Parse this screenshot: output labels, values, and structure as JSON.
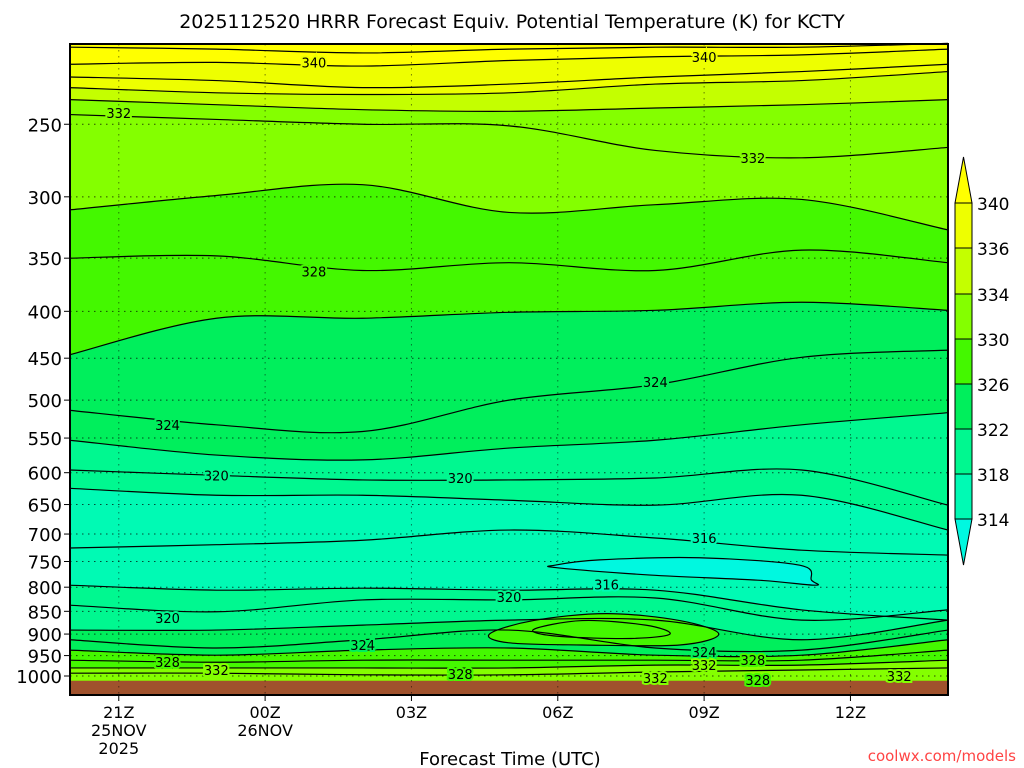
{
  "chart_data": {
    "type": "contour",
    "title": "2025112520 HRRR Forecast Equiv. Potential Temperature (K) for KCTY",
    "xlabel": "Forecast Time (UTC)",
    "ylabel": "",
    "watermark": "coolwx.com/models",
    "x_units": "hours since 2025-11-25 20Z",
    "xlim": [
      0,
      18
    ],
    "ylim": [
      1050,
      204
    ],
    "y_scale": "log",
    "grid": true,
    "x_ticks": [
      {
        "hour": 1,
        "lines": [
          "21Z",
          "25NOV",
          "2025"
        ]
      },
      {
        "hour": 4,
        "lines": [
          "00Z",
          "26NOV"
        ]
      },
      {
        "hour": 7,
        "lines": [
          "03Z"
        ]
      },
      {
        "hour": 10,
        "lines": [
          "06Z"
        ]
      },
      {
        "hour": 13,
        "lines": [
          "09Z"
        ]
      },
      {
        "hour": 16,
        "lines": [
          "12Z"
        ]
      }
    ],
    "y_ticks": [
      "250",
      "300",
      "350",
      "400",
      "450",
      "500",
      "550",
      "600",
      "650",
      "700",
      "750",
      "800",
      "850",
      "900",
      "950",
      "1000"
    ],
    "colorbar": {
      "labels": [
        "340",
        "336",
        "334",
        "330",
        "326",
        "322",
        "318",
        "314"
      ],
      "colors": [
        "#ffff00",
        "#eeff00",
        "#c4ff00",
        "#84ff00",
        "#44f800",
        "#00ef5c",
        "#00f890",
        "#00fab4",
        "#00f8e0"
      ]
    },
    "contour_hours": [
      0,
      3,
      6,
      9,
      12,
      15,
      18
    ],
    "upper_contours": [
      {
        "level": 342,
        "p": [
          206,
          207,
          209,
          207,
          206,
          206,
          204
        ]
      },
      {
        "level": 340,
        "p": [
          215,
          214,
          216,
          213,
          211,
          210,
          207
        ]
      },
      {
        "level": 338,
        "p": [
          222,
          224,
          228,
          226,
          222,
          219,
          215
        ]
      },
      {
        "level": 336,
        "p": [
          228,
          231,
          232,
          231,
          226,
          224,
          219
        ]
      },
      {
        "level": 334,
        "p": [
          235,
          238,
          241,
          242,
          240,
          238,
          235
        ]
      },
      {
        "level": 332,
        "p": [
          244,
          247,
          250,
          251,
          267,
          272,
          265
        ]
      },
      {
        "level": 330,
        "p": [
          310,
          299,
          291,
          312,
          306,
          302,
          326
        ]
      },
      {
        "level": 328,
        "p": [
          350,
          348,
          361,
          354,
          361,
          343,
          354
        ]
      },
      {
        "level": 326,
        "p": [
          446,
          407,
          407,
          401,
          399,
          391,
          399
        ]
      },
      {
        "level": 324,
        "p": [
          513,
          532,
          541,
          500,
          481,
          449,
          441
        ]
      },
      {
        "level": 322,
        "p": [
          553,
          574,
          581,
          564,
          553,
          532,
          516
        ]
      },
      {
        "level": 320,
        "p": [
          596,
          604,
          611,
          611,
          608,
          596,
          651
        ]
      },
      {
        "level": 318,
        "p": [
          624,
          635,
          635,
          643,
          651,
          635,
          693
        ]
      },
      {
        "level": 316,
        "p": [
          725,
          719,
          711,
          693,
          707,
          729,
          738
        ]
      }
    ],
    "lower_contours": [
      {
        "level": 318,
        "p": [
          796,
          806,
          802,
          806,
          806,
          847,
          869
        ]
      },
      {
        "level": 320,
        "p": [
          837,
          851,
          826,
          826,
          822,
          869,
          847
        ]
      },
      {
        "level": 322,
        "p": [
          891,
          891,
          880,
          869,
          869,
          913,
          869
        ]
      },
      {
        "level": 324,
        "p": [
          913,
          932,
          913,
          891,
          932,
          937,
          891
        ]
      },
      {
        "level": 326,
        "p": [
          937,
          949,
          937,
          932,
          949,
          949,
          913
        ]
      },
      {
        "level": 328,
        "p": [
          961,
          966,
          961,
          961,
          961,
          961,
          937
        ]
      },
      {
        "level": 330,
        "p": [
          980,
          980,
          980,
          980,
          973,
          973,
          961
        ]
      },
      {
        "level": 332,
        "p": [
          993,
          993,
          997,
          997,
          990,
          985,
          980
        ]
      }
    ],
    "closed_contours": [
      {
        "level": 314,
        "fill_theta": 313,
        "points": [
          [
            9.94,
            757
          ],
          [
            10.86,
            747
          ],
          [
            12.9,
            743
          ],
          [
            14.96,
            757
          ],
          [
            15.2,
            786
          ],
          [
            15.27,
            796
          ],
          [
            14.1,
            786
          ],
          [
            11.9,
            776
          ],
          [
            10.0,
            762
          ]
        ]
      },
      {
        "level": 326,
        "fill_theta": 327,
        "points": [
          [
            8.6,
            900
          ],
          [
            9.5,
            870
          ],
          [
            11,
            855
          ],
          [
            12.5,
            870
          ],
          [
            13.3,
            900
          ],
          [
            12.5,
            925
          ],
          [
            10.5,
            925
          ],
          [
            9,
            920
          ]
        ]
      },
      {
        "level": 328,
        "fill_theta": 329,
        "points": [
          [
            9.5,
            890
          ],
          [
            10.5,
            870
          ],
          [
            11.8,
            880
          ],
          [
            12.3,
            900
          ],
          [
            11.5,
            910
          ],
          [
            10,
            905
          ]
        ]
      }
    ],
    "contour_labels": [
      {
        "text": "340",
        "hour": 5.0,
        "p": 214
      },
      {
        "text": "340",
        "hour": 13.0,
        "p": 211
      },
      {
        "text": "332",
        "hour": 1.0,
        "p": 243
      },
      {
        "text": "332",
        "hour": 14.0,
        "p": 272
      },
      {
        "text": "328",
        "hour": 5.0,
        "p": 362
      },
      {
        "text": "324",
        "hour": 2.0,
        "p": 532
      },
      {
        "text": "324",
        "hour": 12.0,
        "p": 478
      },
      {
        "text": "320",
        "hour": 3.0,
        "p": 604
      },
      {
        "text": "320",
        "hour": 8.0,
        "p": 608
      },
      {
        "text": "316",
        "hour": 13.0,
        "p": 707
      },
      {
        "text": "316",
        "hour": 11.0,
        "p": 795
      },
      {
        "text": "320",
        "hour": 9.0,
        "p": 820
      },
      {
        "text": "320",
        "hour": 2.0,
        "p": 864
      },
      {
        "text": "324",
        "hour": 6.0,
        "p": 925
      },
      {
        "text": "324",
        "hour": 13.0,
        "p": 942
      },
      {
        "text": "328",
        "hour": 2.0,
        "p": 966
      },
      {
        "text": "332",
        "hour": 3.0,
        "p": 985
      },
      {
        "text": "328",
        "hour": 8.0,
        "p": 995
      },
      {
        "text": "332",
        "hour": 13.0,
        "p": 973
      },
      {
        "text": "328",
        "hour": 14.0,
        "p": 961
      },
      {
        "text": "332",
        "hour": 12.0,
        "p": 1005
      },
      {
        "text": "328",
        "hour": 14.1,
        "p": 1010
      },
      {
        "text": "332",
        "hour": 17.0,
        "p": 1000
      }
    ]
  }
}
